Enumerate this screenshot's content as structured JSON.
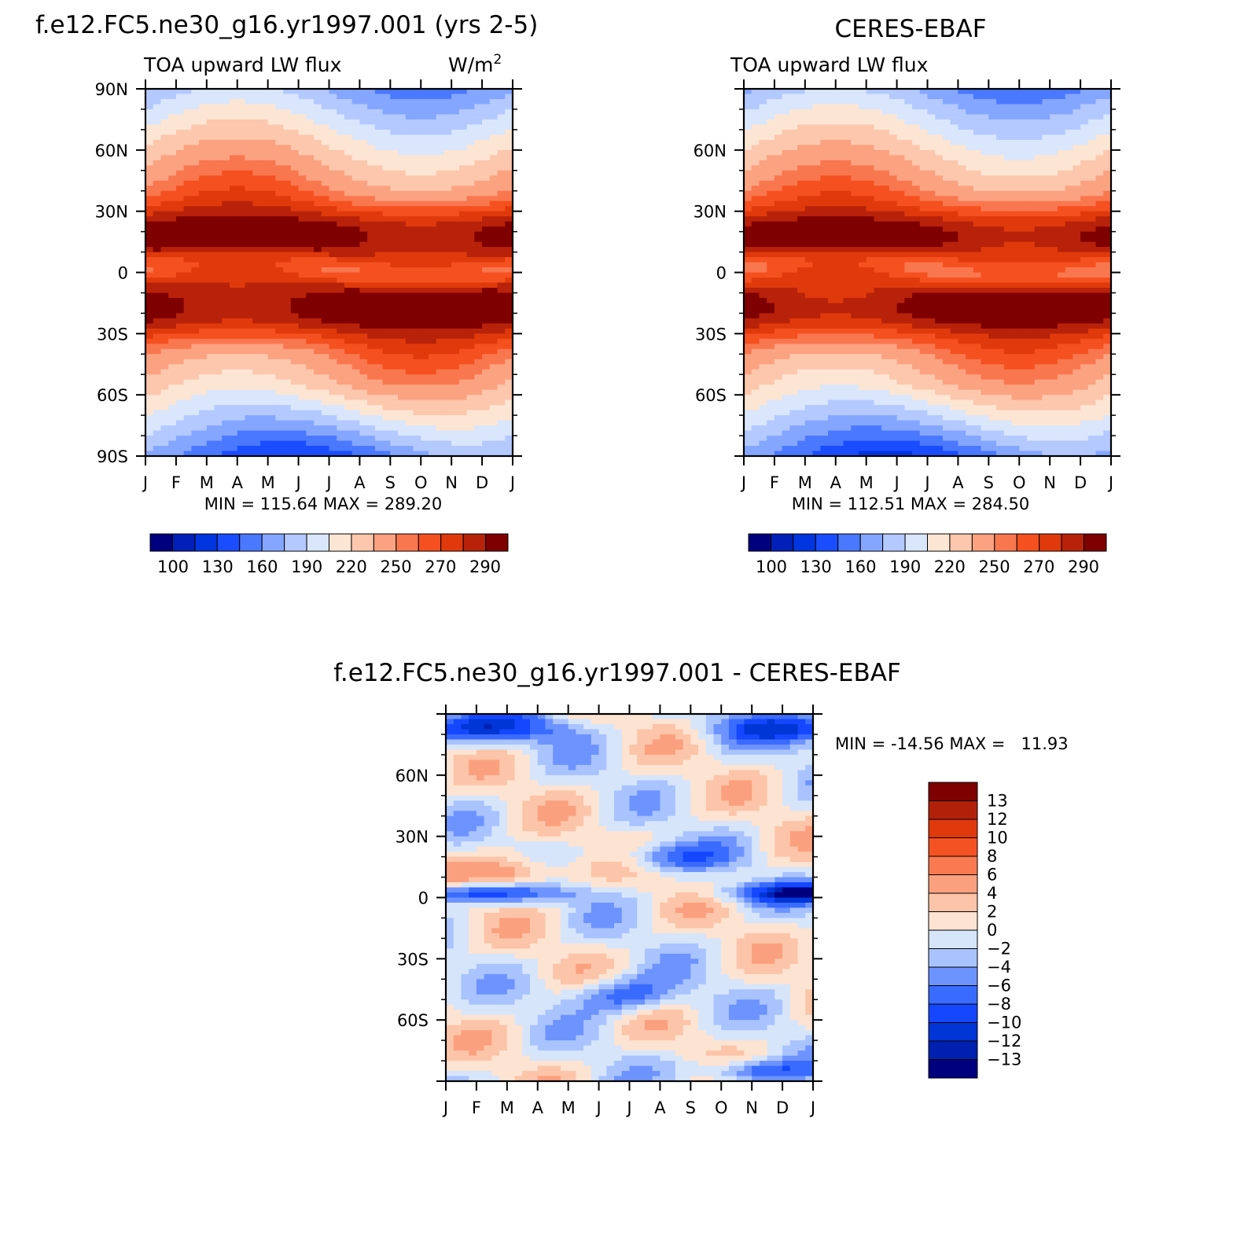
{
  "chart_data": [
    {
      "type": "heatmap",
      "title": "f.e12.FC5.ne30_g16.yr1997.001 (yrs 2-5)",
      "subtitle_left": "TOA upward LW flux",
      "units": "W/m",
      "units_sup": "2",
      "x_ticks": [
        "J",
        "F",
        "M",
        "A",
        "M",
        "J",
        "J",
        "A",
        "S",
        "O",
        "N",
        "D",
        "J"
      ],
      "y_ticks": [
        "90N",
        "60N",
        "30N",
        "0",
        "30S",
        "60S",
        "90S"
      ],
      "ylim": [
        -90,
        90
      ],
      "stats": "MIN = 115.64 MAX = 289.20",
      "colorbar_labels": [
        "100",
        "130",
        "160",
        "190",
        "220",
        "250",
        "270",
        "290"
      ],
      "colorbar_levels": [
        100,
        115,
        130,
        145,
        160,
        175,
        190,
        205,
        220,
        235,
        250,
        260,
        270,
        280,
        290
      ],
      "field": "climatology",
      "model_shift": 0
    },
    {
      "type": "heatmap",
      "title": "CERES-EBAF",
      "subtitle_left": "TOA upward LW flux",
      "units": "",
      "units_sup": "",
      "x_ticks": [
        "J",
        "F",
        "M",
        "A",
        "M",
        "J",
        "J",
        "A",
        "S",
        "O",
        "N",
        "D",
        "J"
      ],
      "y_ticks": [
        "",
        "60N",
        "30N",
        "0",
        "30S",
        "60S",
        ""
      ],
      "ylim": [
        -90,
        90
      ],
      "stats": "MIN = 112.51 MAX = 284.50",
      "colorbar_labels": [
        "100",
        "130",
        "160",
        "190",
        "220",
        "250",
        "270",
        "290"
      ],
      "colorbar_levels": [
        100,
        115,
        130,
        145,
        160,
        175,
        190,
        205,
        220,
        235,
        250,
        260,
        270,
        280,
        290
      ],
      "field": "climatology",
      "model_shift": -3
    },
    {
      "type": "heatmap",
      "title": "f.e12.FC5.ne30_g16.yr1997.001 - CERES-EBAF",
      "x_ticks": [
        "J",
        "F",
        "M",
        "A",
        "M",
        "J",
        "J",
        "A",
        "S",
        "O",
        "N",
        "D",
        "J"
      ],
      "y_ticks": [
        "",
        "60N",
        "30N",
        "0",
        "30S",
        "60S",
        ""
      ],
      "ylim": [
        -90,
        90
      ],
      "stats": "MIN = -14.56 MAX =   11.93",
      "colorbar_labels": [
        "13",
        "12",
        "10",
        "8",
        "6",
        "4",
        "2",
        "0",
        "-2",
        "-4",
        "-6",
        "-8",
        "-10",
        "-12",
        "-13"
      ],
      "colorbar_levels": [
        -13,
        -12,
        -10,
        -8,
        -6,
        -4,
        -2,
        0,
        2,
        4,
        6,
        8,
        10,
        12,
        13
      ],
      "field": "difference"
    }
  ],
  "colors": {
    "climatology_palette": [
      "#00007f",
      "#0020b8",
      "#0035e0",
      "#1a4dff",
      "#4a78ff",
      "#85a6ff",
      "#b3c9ff",
      "#d9e6fb",
      "#fde5d4",
      "#fcc7ad",
      "#fba281",
      "#f9774f",
      "#f5501f",
      "#e03a0c",
      "#b8220a",
      "#7f0000"
    ],
    "difference_palette": [
      "#00007f",
      "#0020b0",
      "#0035d6",
      "#1447ff",
      "#3a6bff",
      "#6d93ff",
      "#a9c3ff",
      "#d6e5fa",
      "#fde3d2",
      "#fcc4a8",
      "#fba07e",
      "#f97a51",
      "#f55224",
      "#e0390b",
      "#b3200a",
      "#7f0000"
    ],
    "frame": "#000000"
  }
}
